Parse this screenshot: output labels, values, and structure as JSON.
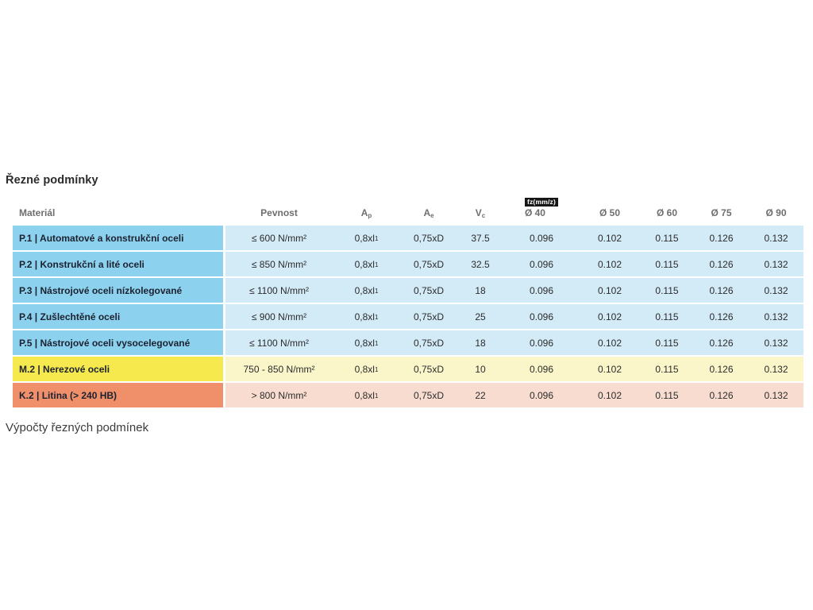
{
  "page": {
    "title": "Řezné podmínky",
    "footer_heading": "Výpočty řezných podmínek"
  },
  "table": {
    "fz_badge": "fz(mm/z)",
    "headers": {
      "material": "Materiál",
      "pevnost": "Pevnost",
      "ap": "A",
      "ap_sub": "p",
      "ae": "A",
      "ae_sub": "e",
      "vc": "V",
      "vc_sub": "c",
      "d40": "Ø 40",
      "d50": "Ø 50",
      "d60": "Ø 60",
      "d75": "Ø 75",
      "d90": "Ø 90"
    },
    "rows": [
      {
        "theme": "blue",
        "material": "P.1 | Automatové a konstrukční oceli",
        "pevnost": "≤ 600 N/mm²",
        "ap": "0,8xl",
        "ap_sub": "1",
        "ae": "0,75xD",
        "vc": "37.5",
        "fz": [
          "0.096",
          "0.102",
          "0.115",
          "0.126",
          "0.132"
        ]
      },
      {
        "theme": "blue",
        "material": "P.2 | Konstrukční a lité oceli",
        "pevnost": "≤ 850 N/mm²",
        "ap": "0,8xl",
        "ap_sub": "1",
        "ae": "0,75xD",
        "vc": "32.5",
        "fz": [
          "0.096",
          "0.102",
          "0.115",
          "0.126",
          "0.132"
        ]
      },
      {
        "theme": "blue",
        "material": "P.3 | Nástrojové oceli nízkolegované",
        "pevnost": "≤ 1100 N/mm²",
        "ap": "0,8xl",
        "ap_sub": "1",
        "ae": "0,75xD",
        "vc": "18",
        "fz": [
          "0.096",
          "0.102",
          "0.115",
          "0.126",
          "0.132"
        ]
      },
      {
        "theme": "blue",
        "material": "P.4 | Zušlechtěné oceli",
        "pevnost": "≤ 900 N/mm²",
        "ap": "0,8xl",
        "ap_sub": "1",
        "ae": "0,75xD",
        "vc": "25",
        "fz": [
          "0.096",
          "0.102",
          "0.115",
          "0.126",
          "0.132"
        ]
      },
      {
        "theme": "blue",
        "material": "P.5 | Nástrojové oceli vysocelegované",
        "pevnost": "≤ 1100 N/mm²",
        "ap": "0,8xl",
        "ap_sub": "1",
        "ae": "0,75xD",
        "vc": "18",
        "fz": [
          "0.096",
          "0.102",
          "0.115",
          "0.126",
          "0.132"
        ]
      },
      {
        "theme": "yellow",
        "material": "M.2 | Nerezové oceli",
        "pevnost": "750 - 850 N/mm²",
        "ap": "0,8xl",
        "ap_sub": "1",
        "ae": "0,75xD",
        "vc": "10",
        "fz": [
          "0.096",
          "0.102",
          "0.115",
          "0.126",
          "0.132"
        ]
      },
      {
        "theme": "orange",
        "material": "K.2 | Litina (> 240 HB)",
        "pevnost": "> 800 N/mm²",
        "ap": "0,8xl",
        "ap_sub": "1",
        "ae": "0,75xD",
        "vc": "22",
        "fz": [
          "0.096",
          "0.102",
          "0.115",
          "0.126",
          "0.132"
        ]
      }
    ]
  },
  "colors": {
    "row_blue_dark": "#8cd2ee",
    "row_blue_light": "#d3eaf7",
    "row_yellow_dark": "#f6e94e",
    "row_yellow_light": "#fbf6ca",
    "row_orange_dark": "#f0906b",
    "row_orange_light": "#f8dcd0",
    "badge_bg": "#161616",
    "header_text": "#6e6e6e"
  }
}
